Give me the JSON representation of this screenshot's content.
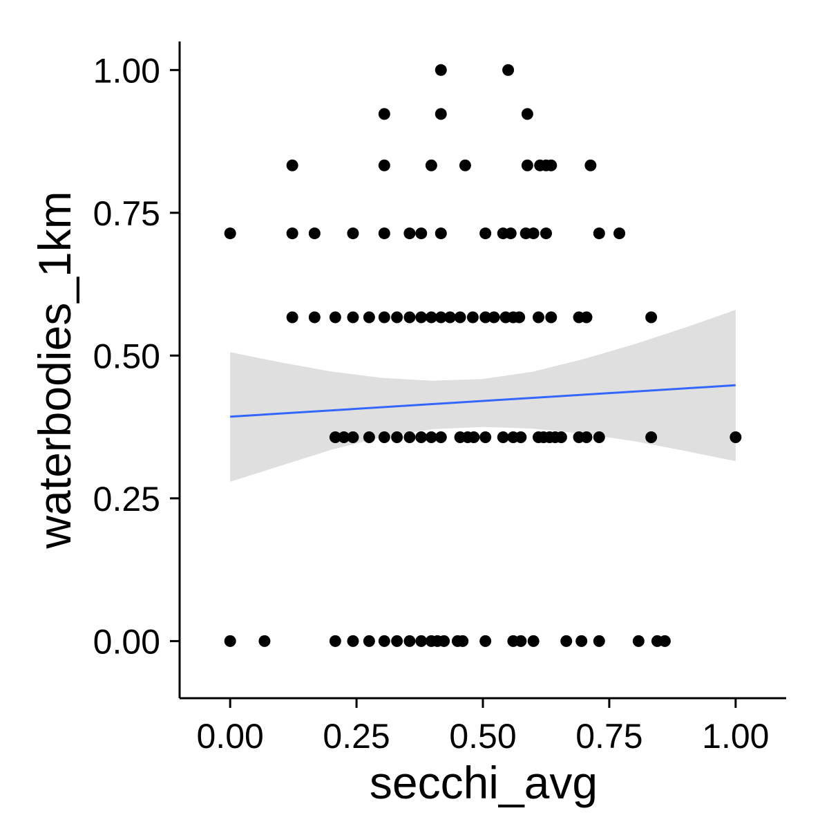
{
  "chart_data": {
    "type": "scatter",
    "title": "",
    "xlabel": "secchi_avg",
    "ylabel": "waterbodies_1km",
    "xlim": [
      -0.1,
      1.1
    ],
    "ylim": [
      -0.1,
      1.05
    ],
    "x_ticks": [
      {
        "value": 0.0,
        "label": "0.00"
      },
      {
        "value": 0.25,
        "label": "0.25"
      },
      {
        "value": 0.5,
        "label": "0.50"
      },
      {
        "value": 0.75,
        "label": "0.75"
      },
      {
        "value": 1.0,
        "label": "1.00"
      }
    ],
    "y_ticks": [
      {
        "value": 0.0,
        "label": "0.00"
      },
      {
        "value": 0.25,
        "label": "0.25"
      },
      {
        "value": 0.5,
        "label": "0.50"
      },
      {
        "value": 0.75,
        "label": "0.75"
      },
      {
        "value": 1.0,
        "label": "1.00"
      }
    ],
    "grid": false,
    "legend": "none",
    "point_color": "#000000",
    "points": [
      [
        0.417,
        1.0
      ],
      [
        0.55,
        1.0
      ],
      [
        0.305,
        0.923
      ],
      [
        0.417,
        0.923
      ],
      [
        0.588,
        0.923
      ],
      [
        0.123,
        0.833
      ],
      [
        0.305,
        0.833
      ],
      [
        0.398,
        0.833
      ],
      [
        0.465,
        0.833
      ],
      [
        0.588,
        0.833
      ],
      [
        0.613,
        0.833
      ],
      [
        0.625,
        0.833
      ],
      [
        0.635,
        0.833
      ],
      [
        0.713,
        0.833
      ],
      [
        0.0,
        0.714
      ],
      [
        0.123,
        0.714
      ],
      [
        0.167,
        0.714
      ],
      [
        0.243,
        0.714
      ],
      [
        0.305,
        0.714
      ],
      [
        0.355,
        0.714
      ],
      [
        0.378,
        0.714
      ],
      [
        0.417,
        0.714
      ],
      [
        0.505,
        0.714
      ],
      [
        0.54,
        0.714
      ],
      [
        0.555,
        0.714
      ],
      [
        0.585,
        0.714
      ],
      [
        0.6,
        0.714
      ],
      [
        0.625,
        0.714
      ],
      [
        0.73,
        0.714
      ],
      [
        0.77,
        0.714
      ],
      [
        0.123,
        0.567
      ],
      [
        0.167,
        0.567
      ],
      [
        0.208,
        0.567
      ],
      [
        0.243,
        0.567
      ],
      [
        0.275,
        0.567
      ],
      [
        0.305,
        0.567
      ],
      [
        0.33,
        0.567
      ],
      [
        0.355,
        0.567
      ],
      [
        0.378,
        0.567
      ],
      [
        0.398,
        0.567
      ],
      [
        0.417,
        0.567
      ],
      [
        0.435,
        0.567
      ],
      [
        0.455,
        0.567
      ],
      [
        0.48,
        0.567
      ],
      [
        0.505,
        0.567
      ],
      [
        0.522,
        0.567
      ],
      [
        0.545,
        0.567
      ],
      [
        0.56,
        0.567
      ],
      [
        0.572,
        0.567
      ],
      [
        0.61,
        0.567
      ],
      [
        0.635,
        0.567
      ],
      [
        0.69,
        0.567
      ],
      [
        0.705,
        0.567
      ],
      [
        0.833,
        0.567
      ],
      [
        0.208,
        0.357
      ],
      [
        0.225,
        0.357
      ],
      [
        0.243,
        0.357
      ],
      [
        0.275,
        0.357
      ],
      [
        0.305,
        0.357
      ],
      [
        0.33,
        0.357
      ],
      [
        0.355,
        0.357
      ],
      [
        0.378,
        0.357
      ],
      [
        0.398,
        0.357
      ],
      [
        0.417,
        0.357
      ],
      [
        0.455,
        0.357
      ],
      [
        0.47,
        0.357
      ],
      [
        0.482,
        0.357
      ],
      [
        0.505,
        0.357
      ],
      [
        0.54,
        0.357
      ],
      [
        0.56,
        0.357
      ],
      [
        0.575,
        0.357
      ],
      [
        0.61,
        0.357
      ],
      [
        0.62,
        0.357
      ],
      [
        0.632,
        0.357
      ],
      [
        0.643,
        0.357
      ],
      [
        0.655,
        0.357
      ],
      [
        0.69,
        0.357
      ],
      [
        0.705,
        0.357
      ],
      [
        0.73,
        0.357
      ],
      [
        0.833,
        0.357
      ],
      [
        1.0,
        0.357
      ],
      [
        0.0,
        0.0
      ],
      [
        0.068,
        0.0
      ],
      [
        0.208,
        0.0
      ],
      [
        0.243,
        0.0
      ],
      [
        0.275,
        0.0
      ],
      [
        0.305,
        0.0
      ],
      [
        0.33,
        0.0
      ],
      [
        0.355,
        0.0
      ],
      [
        0.378,
        0.0
      ],
      [
        0.398,
        0.0
      ],
      [
        0.41,
        0.0
      ],
      [
        0.423,
        0.0
      ],
      [
        0.45,
        0.0
      ],
      [
        0.46,
        0.0
      ],
      [
        0.505,
        0.0
      ],
      [
        0.56,
        0.0
      ],
      [
        0.575,
        0.0
      ],
      [
        0.6,
        0.0
      ],
      [
        0.665,
        0.0
      ],
      [
        0.695,
        0.0
      ],
      [
        0.73,
        0.0
      ],
      [
        0.808,
        0.0
      ],
      [
        0.845,
        0.0
      ],
      [
        0.86,
        0.0
      ]
    ],
    "trend_line": {
      "method": "linear",
      "color": "#3366ff",
      "x": [
        0.0,
        1.0
      ],
      "y": [
        0.393,
        0.448
      ]
    },
    "confidence_band": {
      "color": "#d9d9d9",
      "x": [
        0.0,
        0.1,
        0.2,
        0.3,
        0.4,
        0.5,
        0.6,
        0.7,
        0.8,
        0.9,
        1.0
      ],
      "upper": [
        0.506,
        0.488,
        0.472,
        0.461,
        0.456,
        0.459,
        0.472,
        0.494,
        0.52,
        0.549,
        0.58
      ],
      "lower": [
        0.279,
        0.307,
        0.335,
        0.357,
        0.371,
        0.375,
        0.372,
        0.363,
        0.35,
        0.333,
        0.315
      ]
    }
  }
}
